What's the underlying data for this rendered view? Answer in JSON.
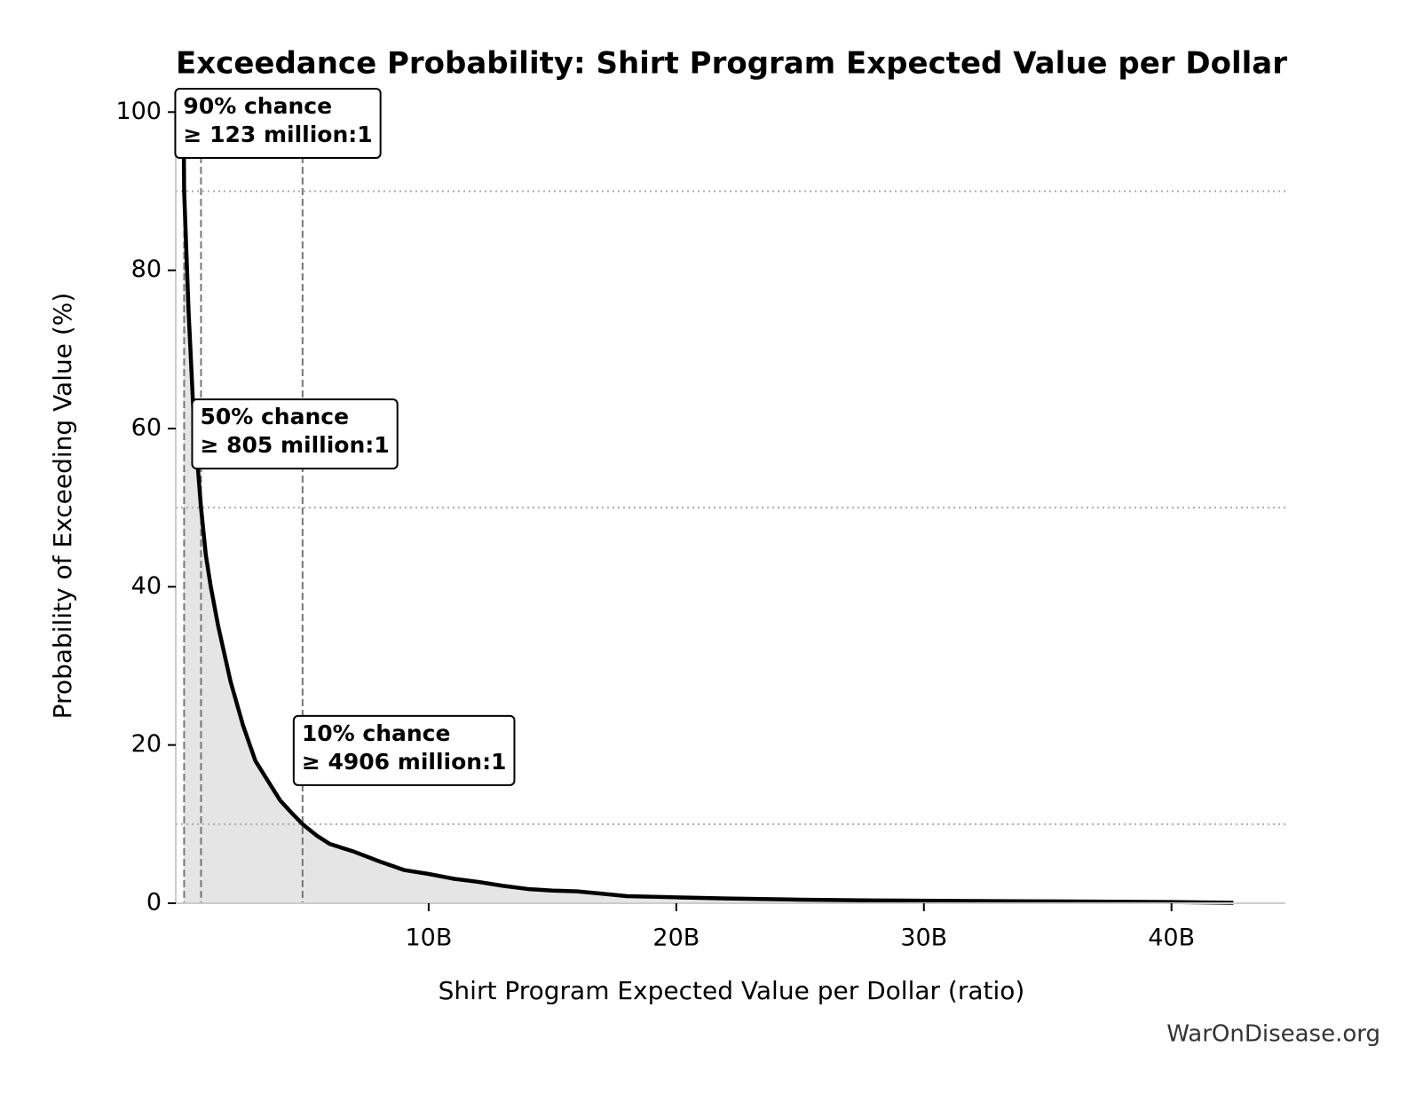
{
  "chart_data": {
    "type": "line",
    "title": "Exceedance Probability: Shirt Program Expected Value per Dollar",
    "x_label": "Shirt Program Expected Value per Dollar (ratio)",
    "y_label": "Probability of Exceeding Value (%)",
    "source": "WarOnDisease.org",
    "series": [
      {
        "color": "#000000",
        "fill": "#e5e5e5",
        "x": [
          100000000,
          123000000,
          300000000,
          500000000,
          805000000,
          1000000000,
          1200000000,
          1500000000,
          2000000000,
          2500000000,
          3000000000,
          3500000000,
          4000000000,
          4500000000,
          4906000000,
          5500000000,
          6000000000,
          7000000000,
          8000000000,
          9000000000,
          10000000000,
          11000000000,
          12000000000,
          13000000000,
          14000000000,
          15000000000,
          16000000000,
          17000000000,
          18000000000,
          20000000000,
          22000000000,
          25000000000,
          28000000000,
          32000000000,
          36000000000,
          40000000000,
          42500000000
        ],
        "values": [
          100,
          90,
          75,
          62,
          50,
          44,
          40,
          35,
          28,
          22.5,
          18,
          15.5,
          13,
          11.3,
          10,
          8.5,
          7.5,
          6.5,
          5.3,
          4.2,
          3.7,
          3.1,
          2.7,
          2.2,
          1.8,
          1.6,
          1.5,
          1.2,
          0.9,
          0.75,
          0.6,
          0.45,
          0.35,
          0.28,
          0.22,
          0.15,
          0.05
        ]
      }
    ],
    "markers": [
      {
        "probability": 90,
        "value": 123000000,
        "label": [
          "90% chance",
          "≥ 123 million:1"
        ]
      },
      {
        "probability": 50,
        "value": 805000000,
        "label": [
          "50% chance",
          "≥ 805 million:1"
        ]
      },
      {
        "probability": 10,
        "value": 4906000000,
        "label": [
          "10% chance",
          "≥ 4906 million:1"
        ]
      }
    ],
    "xlim": [
      -215000000,
      44600000000
    ],
    "xticks": [
      {
        "value": 10000000000,
        "label": "10B"
      },
      {
        "value": 20000000000,
        "label": "20B"
      },
      {
        "value": 30000000000,
        "label": "30B"
      },
      {
        "value": 40000000000,
        "label": "40B"
      }
    ],
    "ylim": [
      0,
      102.5
    ],
    "yticks": [
      0,
      20,
      40,
      60,
      80,
      100
    ]
  }
}
